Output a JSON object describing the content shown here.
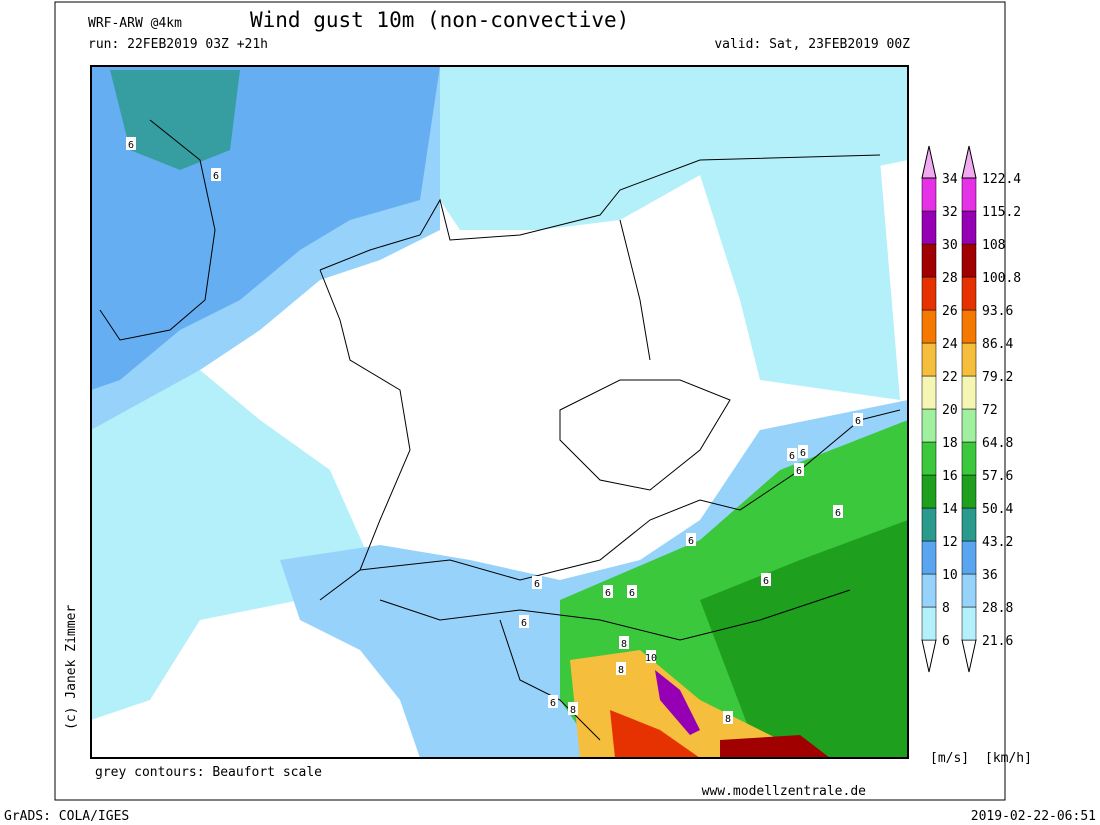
{
  "header": {
    "model": "WRF-ARW @4km",
    "title": "Wind gust 10m (non-convective)",
    "run": "run: 22FEB2019 03Z +21h",
    "valid": "valid: Sat, 23FEB2019 00Z"
  },
  "colorbar": {
    "ms_labels": [
      6,
      8,
      10,
      12,
      14,
      16,
      18,
      20,
      22,
      24,
      26,
      28,
      30,
      32,
      34
    ],
    "kmh_labels": [
      21.6,
      28.8,
      36,
      43.2,
      50.4,
      57.6,
      64.8,
      72,
      79.2,
      86.4,
      93.6,
      100.8,
      108,
      115.2,
      122.4
    ],
    "colors": [
      "#b4f0fa",
      "#96d2fa",
      "#5aa5f0",
      "#2a9a8c",
      "#1ea01e",
      "#3cc83c",
      "#a0f0a0",
      "#f5f5b4",
      "#f5be3c",
      "#f57800",
      "#e63200",
      "#a00000",
      "#9600b4",
      "#e632e6"
    ],
    "below_color": "#ffffff",
    "above_color": "#f0aaf0",
    "units": [
      "[m/s]",
      "[km/h]"
    ]
  },
  "map": {
    "contour_labels": [
      "6",
      "6",
      "6",
      "6",
      "6",
      "6",
      "6",
      "6",
      "6",
      "6",
      "6",
      "6",
      "6",
      "8",
      "8",
      "8",
      "10",
      "6",
      "8"
    ]
  },
  "footer": {
    "contours": "grey contours: Beaufort scale",
    "website": "www.modellzentrale.de",
    "copyright": "(c) Janek Zimmer",
    "software": "GrADS: COLA/IGES",
    "timestamp": "2019-02-22-06:51"
  }
}
